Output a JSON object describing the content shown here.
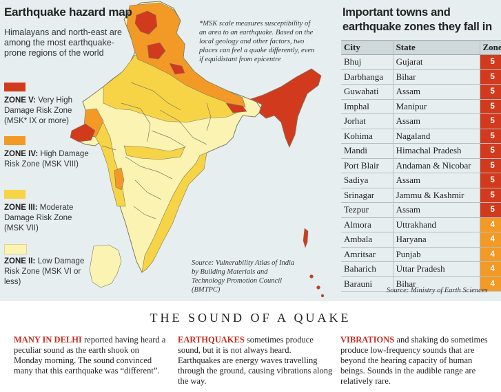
{
  "map": {
    "title": "Earthquake hazard map",
    "subtitle": "Himalayans and north-east are among the most earthquake-prone regions of the world",
    "msk_note": "*MSK scale measures susceptibility of an area to an earthquake. Based on the local geology and other factors, two places can feel a quake differently, even if equidistant from epicentre",
    "source": "Source: Vulnerability Atlas of India by Building Materials and Technology Promotion Council (BMTPC)",
    "colors": {
      "zone5": "#d23a1e",
      "zone4": "#f39a26",
      "zone3": "#f7d346",
      "zone2": "#fbf3b2",
      "boundary": "#7a7a60",
      "background": "#e7eef0"
    }
  },
  "legend": [
    {
      "name": "ZONE V:",
      "desc": "Very High Damage Risk Zone (MSK* IX or more)",
      "color": "#d23a1e"
    },
    {
      "name": "ZONE IV:",
      "desc": "High Damage Risk Zone (MSK VIII)",
      "color": "#f39a26"
    },
    {
      "name": "ZONE III:",
      "desc": "Moderate Damage Risk Zone (MSK VII)",
      "color": "#f7d346"
    },
    {
      "name": "ZONE II:",
      "desc": "Low Damage Risk Zone (MSK VI or less)",
      "color": "#fbf3b2"
    }
  ],
  "table": {
    "title": "Important towns and earthquake zones they fall in",
    "headers": {
      "city": "City",
      "state": "State",
      "zone": "Zone"
    },
    "rows": [
      {
        "city": "Bhuj",
        "state": "Gujarat",
        "zone": "5"
      },
      {
        "city": "Darbhanga",
        "state": "Bihar",
        "zone": "5"
      },
      {
        "city": "Guwahati",
        "state": "Assam",
        "zone": "5"
      },
      {
        "city": "Imphal",
        "state": "Manipur",
        "zone": "5"
      },
      {
        "city": "Jorhat",
        "state": "Assam",
        "zone": "5"
      },
      {
        "city": "Kohima",
        "state": "Nagaland",
        "zone": "5"
      },
      {
        "city": "Mandi",
        "state": "Himachal Pradesh",
        "zone": "5"
      },
      {
        "city": "Port Blair",
        "state": "Andaman & Nicobar",
        "zone": "5"
      },
      {
        "city": "Sadiya",
        "state": "Assam",
        "zone": "5"
      },
      {
        "city": "Srinagar",
        "state": "Jammu & Kashmir",
        "zone": "5"
      },
      {
        "city": "Tezpur",
        "state": "Assam",
        "zone": "5"
      },
      {
        "city": "Almora",
        "state": "Uttrakhand",
        "zone": "4"
      },
      {
        "city": "Ambala",
        "state": "Haryana",
        "zone": "4"
      },
      {
        "city": "Amritsar",
        "state": "Punjab",
        "zone": "4"
      },
      {
        "city": "Baharich",
        "state": "Uttar Pradesh",
        "zone": "4"
      },
      {
        "city": "Barauni",
        "state": "Bihar",
        "zone": "4"
      }
    ],
    "zone_colors": {
      "5": "#d23a1e",
      "4": "#f39a26"
    },
    "source": "Source: Ministry of Earth Sciences"
  },
  "article": {
    "title": "THE SOUND OF A QUAKE",
    "columns": [
      {
        "lead": "MANY IN DELHI",
        "text": " reported having heard a peculiar sound as the earth shook on Monday morning. The sound convinced many that this earthquake was “different”."
      },
      {
        "lead": "EARTHQUAKES",
        "text": " sometimes produce sound, but it is not always heard. Earthquakes are energy waves travelling through the ground, causing vibrations along the way."
      },
      {
        "lead": "VIBRATIONS",
        "text": " and shaking do sometimes produce low-frequency sounds that are beyond the hearing capacity of human beings. Sounds in the audible range are relatively rare."
      }
    ]
  }
}
